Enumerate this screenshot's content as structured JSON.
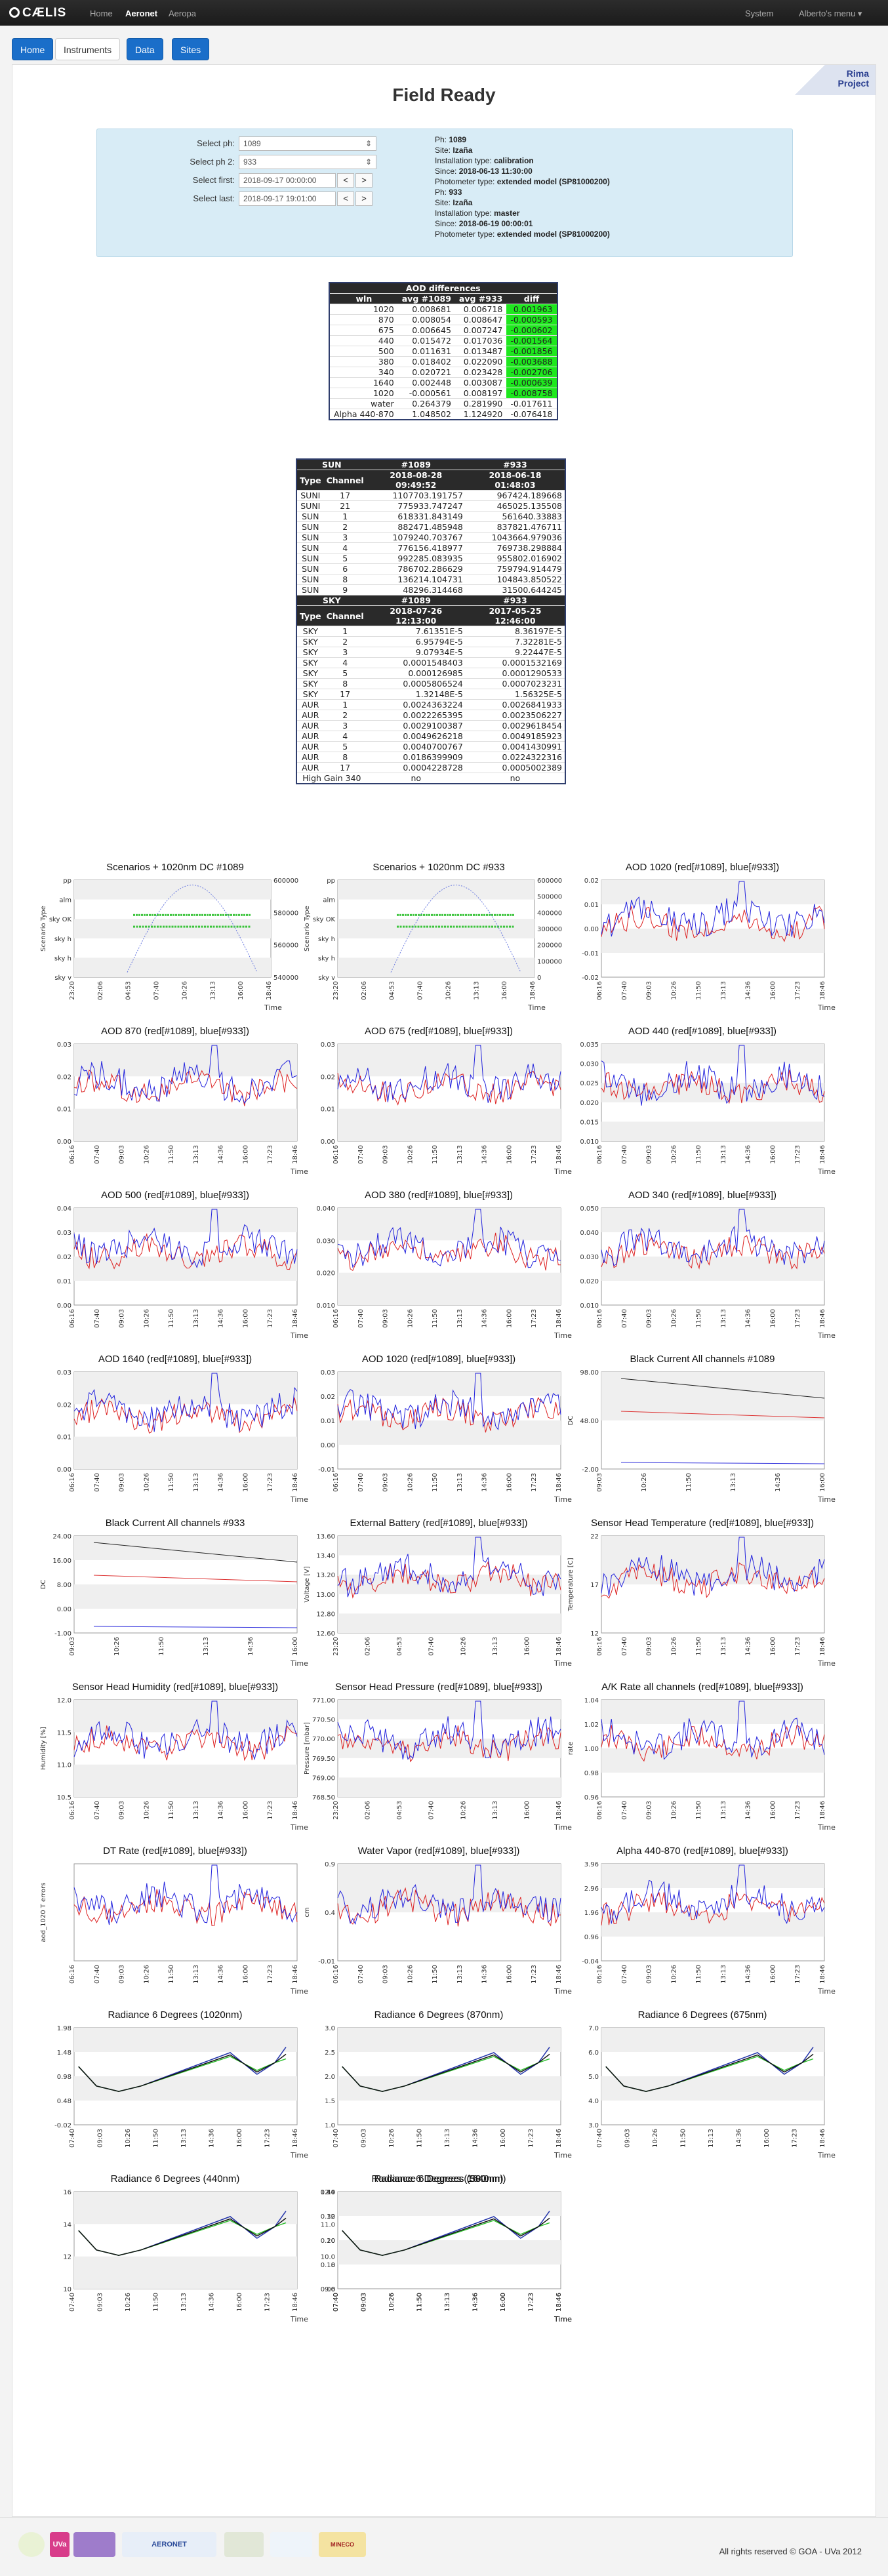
{
  "app": {
    "brand": "CÆLIS"
  },
  "nav": {
    "items": [
      "Home",
      "Aeronet",
      "Aeropa"
    ],
    "system": "System",
    "user": "Alberto's menu"
  },
  "subnav": {
    "home": "Home",
    "instruments": "Instruments",
    "data": "Data",
    "sites": "Sites"
  },
  "rima": "Rima\nProject",
  "page_title": "Field Ready",
  "form": {
    "select_ph_label": "Select ph:",
    "select_ph_value": "1089",
    "select_ph2_label": "Select ph 2:",
    "select_ph2_value": "933",
    "select_first_label": "Select first:",
    "select_first_value": "2018-09-17 00:00:00",
    "select_last_label": "Select last:",
    "select_last_value": "2018-09-17 19:01:00",
    "prev": "<",
    "next": ">"
  },
  "ph1": {
    "ph": "1089",
    "site": "Izaña",
    "installation": "calibration",
    "since": "2018-06-13 11:30:00",
    "model": "extended model (SP81000200)"
  },
  "ph2": {
    "ph": "933",
    "site": "Izaña",
    "installation": "master",
    "since": "2018-06-19 00:00:01",
    "model": "extended model (SP81000200)"
  },
  "labels": {
    "ph": "Ph:",
    "site": "Site:",
    "inst": "Installation type:",
    "since": "Since:",
    "model": "Photometer type:"
  },
  "aod_table": {
    "title": "AOD differences",
    "headers": [
      "wln",
      "avg #1089",
      "avg #933",
      "diff"
    ],
    "rows": [
      [
        "1020",
        "0.008681",
        "0.006718",
        "0.001963",
        true
      ],
      [
        "870",
        "0.008054",
        "0.008647",
        "-0.000593",
        true
      ],
      [
        "675",
        "0.006645",
        "0.007247",
        "-0.000602",
        true
      ],
      [
        "440",
        "0.015472",
        "0.017036",
        "-0.001564",
        true
      ],
      [
        "500",
        "0.011631",
        "0.013487",
        "-0.001856",
        true
      ],
      [
        "380",
        "0.018402",
        "0.022090",
        "-0.003688",
        true
      ],
      [
        "340",
        "0.020721",
        "0.023428",
        "-0.002706",
        true
      ],
      [
        "1640",
        "0.002448",
        "0.003087",
        "-0.000639",
        true
      ],
      [
        "1020",
        "-0.000561",
        "0.008197",
        "-0.008758",
        true
      ],
      [
        "water",
        "0.264379",
        "0.281990",
        "-0.017611",
        false
      ],
      [
        "Alpha 440-870",
        "1.048502",
        "1.124920",
        "-0.076418",
        false
      ]
    ]
  },
  "sun_table": {
    "head1": [
      "SUN",
      "#1089",
      "#933"
    ],
    "head2": [
      "Type",
      "Channel",
      "2018-08-28 09:49:52",
      "2018-06-18 01:48:03"
    ],
    "rows": [
      [
        "SUNI",
        "17",
        "1107703.191757",
        "967424.189668"
      ],
      [
        "SUNI",
        "21",
        "775933.747247",
        "465025.135508"
      ],
      [
        "SUN",
        "1",
        "618331.843149",
        "561640.33883"
      ],
      [
        "SUN",
        "2",
        "882471.485948",
        "837821.476711"
      ],
      [
        "SUN",
        "3",
        "1079240.703767",
        "1043664.979036"
      ],
      [
        "SUN",
        "4",
        "776156.418977",
        "769738.298884"
      ],
      [
        "SUN",
        "5",
        "992285.083935",
        "955802.016902"
      ],
      [
        "SUN",
        "6",
        "786702.286629",
        "759794.914479"
      ],
      [
        "SUN",
        "8",
        "136214.104731",
        "104843.850522"
      ],
      [
        "SUN",
        "9",
        "48296.314468",
        "31500.644245"
      ]
    ]
  },
  "sky_table": {
    "head1": [
      "SKY",
      "#1089",
      "#933"
    ],
    "head2": [
      "Type",
      "Channel",
      "2018-07-26 12:13:00",
      "2017-05-25 12:46:00"
    ],
    "rows": [
      [
        "SKY",
        "1",
        "7.61351E-5",
        "8.36197E-5"
      ],
      [
        "SKY",
        "2",
        "6.95794E-5",
        "7.32281E-5"
      ],
      [
        "SKY",
        "3",
        "9.07934E-5",
        "9.22447E-5"
      ],
      [
        "SKY",
        "4",
        "0.0001548403",
        "0.0001532169"
      ],
      [
        "SKY",
        "5",
        "0.000126985",
        "0.0001290533"
      ],
      [
        "SKY",
        "8",
        "0.0005806524",
        "0.0007023231"
      ],
      [
        "SKY",
        "17",
        "1.32148E-5",
        "1.56325E-5"
      ],
      [
        "AUR",
        "1",
        "0.0024363224",
        "0.0026841933"
      ],
      [
        "AUR",
        "2",
        "0.0022265395",
        "0.0023506227"
      ],
      [
        "AUR",
        "3",
        "0.0029100387",
        "0.0029618454"
      ],
      [
        "AUR",
        "4",
        "0.0049626218",
        "0.0049185923"
      ],
      [
        "AUR",
        "5",
        "0.0040700767",
        "0.0041430991"
      ],
      [
        "AUR",
        "8",
        "0.0186399909",
        "0.0224322316"
      ],
      [
        "AUR",
        "17",
        "0.0004228728",
        "0.0005002389"
      ]
    ],
    "gain": [
      "High Gain 340",
      "no",
      "no"
    ]
  },
  "charts": [
    {
      "title": "Scenarios + 1020nm DC #1089",
      "ylabel": "Scenario Type",
      "xlabel": "Time",
      "yticks": [
        "pp",
        "alm",
        "sky OK",
        "sky h",
        "sky h",
        "sky v"
      ],
      "y2ticks": [
        "600000",
        "580000",
        "560000",
        "540000"
      ],
      "xticks": [
        "23:20",
        "02:06",
        "04:53",
        "07:40",
        "10:26",
        "13:13",
        "16:00",
        "18:46"
      ],
      "kind": "scen"
    },
    {
      "title": "Scenarios + 1020nm DC #933",
      "ylabel": "Scenario Type",
      "xlabel": "Time",
      "yticks": [
        "pp",
        "alm",
        "sky OK",
        "sky h",
        "sky h",
        "sky v"
      ],
      "y2ticks": [
        "600000",
        "500000",
        "400000",
        "300000",
        "200000",
        "100000",
        "0"
      ],
      "xticks": [
        "23:20",
        "02:06",
        "04:53",
        "07:40",
        "10:26",
        "13:13",
        "16:00",
        "18:46"
      ],
      "kind": "scen"
    },
    {
      "title": "AOD 1020 (red[#1089], blue[#933])",
      "ylabel": "",
      "xlabel": "Time",
      "yticks": [
        "0.02",
        "0.01",
        "0.00",
        "-0.01",
        "-0.02"
      ],
      "xticks": [
        "06:16",
        "07:40",
        "09:03",
        "10:26",
        "11:50",
        "13:13",
        "14:36",
        "16:00",
        "17:23",
        "18:46"
      ],
      "kind": "aod"
    },
    {
      "title": "AOD 870 (red[#1089], blue[#933])",
      "ylabel": "",
      "xlabel": "Time",
      "yticks": [
        "0.03",
        "0.02",
        "0.01",
        "0.00"
      ],
      "xticks": [
        "06:16",
        "07:40",
        "09:03",
        "10:26",
        "11:50",
        "13:13",
        "14:36",
        "16:00",
        "17:23",
        "18:46"
      ],
      "kind": "aod"
    },
    {
      "title": "AOD 675 (red[#1089], blue[#933])",
      "ylabel": "",
      "xlabel": "Time",
      "yticks": [
        "0.03",
        "0.02",
        "0.01",
        "0.00"
      ],
      "xticks": [
        "06:16",
        "07:40",
        "09:03",
        "10:26",
        "11:50",
        "13:13",
        "14:36",
        "16:00",
        "17:23",
        "18:46"
      ],
      "kind": "aod"
    },
    {
      "title": "AOD 440 (red[#1089], blue[#933])",
      "ylabel": "",
      "xlabel": "Time",
      "yticks": [
        "0.035",
        "0.030",
        "0.025",
        "0.020",
        "0.015",
        "0.010"
      ],
      "xticks": [
        "06:16",
        "07:40",
        "09:03",
        "10:26",
        "11:50",
        "13:13",
        "14:36",
        "16:00",
        "17:23",
        "18:46"
      ],
      "kind": "aod"
    },
    {
      "title": "AOD 500 (red[#1089], blue[#933])",
      "ylabel": "",
      "xlabel": "Time",
      "yticks": [
        "0.04",
        "0.03",
        "0.02",
        "0.01",
        "0.00"
      ],
      "xticks": [
        "06:16",
        "07:40",
        "09:03",
        "10:26",
        "11:50",
        "13:13",
        "14:36",
        "16:00",
        "17:23",
        "18:46"
      ],
      "kind": "aod"
    },
    {
      "title": "AOD 380 (red[#1089], blue[#933])",
      "ylabel": "",
      "xlabel": "Time",
      "yticks": [
        "0.040",
        "0.030",
        "0.020",
        "0.010"
      ],
      "xticks": [
        "06:16",
        "07:40",
        "09:03",
        "10:26",
        "11:50",
        "13:13",
        "14:36",
        "16:00",
        "17:23",
        "18:46"
      ],
      "kind": "aod"
    },
    {
      "title": "AOD 340 (red[#1089], blue[#933])",
      "ylabel": "",
      "xlabel": "Time",
      "yticks": [
        "0.050",
        "0.040",
        "0.030",
        "0.020",
        "0.010"
      ],
      "xticks": [
        "06:16",
        "07:40",
        "09:03",
        "10:26",
        "11:50",
        "13:13",
        "14:36",
        "16:00",
        "17:23",
        "18:46"
      ],
      "kind": "aod"
    },
    {
      "title": "AOD 1640 (red[#1089], blue[#933])",
      "ylabel": "",
      "xlabel": "Time",
      "yticks": [
        "0.03",
        "0.02",
        "0.01",
        "0.00"
      ],
      "xticks": [
        "06:16",
        "07:40",
        "09:03",
        "10:26",
        "11:50",
        "13:13",
        "14:36",
        "16:00",
        "17:23",
        "18:46"
      ],
      "kind": "aod"
    },
    {
      "title": "AOD 1020 (red[#1089], blue[#933])",
      "ylabel": "",
      "xlabel": "Time",
      "yticks": [
        "0.03",
        "0.02",
        "0.01",
        "0.00",
        "-0.01"
      ],
      "xticks": [
        "06:16",
        "07:40",
        "09:03",
        "10:26",
        "11:50",
        "13:13",
        "14:36",
        "16:00",
        "17:23",
        "18:46"
      ],
      "kind": "aod2"
    },
    {
      "title": "Black Current All channels #1089",
      "ylabel": "DC",
      "xlabel": "Time",
      "yticks": [
        "98.00",
        "48.00",
        "-2.00"
      ],
      "xticks": [
        "09:03",
        "10:26",
        "11:50",
        "13:13",
        "14:36",
        "16:00"
      ],
      "kind": "bc"
    },
    {
      "title": "Black Current All channels #933",
      "ylabel": "DC",
      "xlabel": "Time",
      "yticks": [
        "24.00",
        "16.00",
        "8.00",
        "0.00",
        "-1.00"
      ],
      "xticks": [
        "09:03",
        "10:26",
        "11:50",
        "13:13",
        "14:36",
        "16:00"
      ],
      "kind": "bc2"
    },
    {
      "title": "External Battery (red[#1089], blue[#933])",
      "ylabel": "Voltage [V]",
      "xlabel": "Time",
      "yticks": [
        "13.60",
        "13.40",
        "13.20",
        "13.00",
        "12.80",
        "12.60"
      ],
      "xticks": [
        "23:20",
        "02:06",
        "04:53",
        "07:40",
        "10:26",
        "13:13",
        "16:00",
        "18:46"
      ],
      "kind": "batt"
    },
    {
      "title": "Sensor Head Temperature (red[#1089], blue[#933])",
      "ylabel": "Temperature [C]",
      "xlabel": "Time",
      "yticks": [
        "22",
        "17",
        "12"
      ],
      "xticks": [
        "06:16",
        "07:40",
        "09:03",
        "10:26",
        "11:50",
        "13:13",
        "14:36",
        "16:00",
        "17:23",
        "18:46"
      ],
      "kind": "temp"
    },
    {
      "title": "Sensor Head Humidity (red[#1089], blue[#933])",
      "ylabel": "Humidity [%]",
      "xlabel": "Time",
      "yticks": [
        "12.0",
        "11.5",
        "11.0",
        "10.5"
      ],
      "xticks": [
        "06:16",
        "07:40",
        "09:03",
        "10:26",
        "11:50",
        "13:13",
        "14:36",
        "16:00",
        "17:23",
        "18:46"
      ],
      "kind": "hum"
    },
    {
      "title": "Sensor Head Pressure (red[#1089], blue[#933])",
      "ylabel": "Pressure [mbar]",
      "xlabel": "Time",
      "yticks": [
        "771.00",
        "770.50",
        "770.00",
        "769.50",
        "769.00",
        "768.50"
      ],
      "xticks": [
        "23:20",
        "02:06",
        "04:53",
        "07:40",
        "10:26",
        "13:13",
        "16:00",
        "18:46"
      ],
      "kind": "press"
    },
    {
      "title": "A/K Rate all channels (red[#1089], blue[#933])",
      "ylabel": "rate",
      "xlabel": "Time",
      "yticks": [
        "1.04",
        "1.02",
        "1.00",
        "0.98",
        "0.96"
      ],
      "xticks": [
        "06:16",
        "07:40",
        "09:03",
        "10:26",
        "11:50",
        "13:13",
        "14:36",
        "16:00",
        "17:23",
        "18:46"
      ],
      "kind": "ak"
    },
    {
      "title": "DT Rate (red[#1089], blue[#933])",
      "ylabel": "aod_1020 T errors",
      "xlabel": "Time",
      "yticks": [],
      "xticks": [
        "06:16",
        "07:40",
        "09:03",
        "10:26",
        "11:50",
        "13:13",
        "14:36",
        "16:00",
        "17:23",
        "18:46"
      ],
      "kind": "dt"
    },
    {
      "title": "Water Vapor (red[#1089], blue[#933])",
      "ylabel": "cm",
      "xlabel": "Time",
      "yticks": [
        "0.9",
        "0.4",
        "-0.01"
      ],
      "xticks": [
        "06:16",
        "07:40",
        "09:03",
        "10:26",
        "11:50",
        "13:13",
        "14:36",
        "16:00",
        "17:23",
        "18:46"
      ],
      "kind": "wv"
    },
    {
      "title": "Alpha 440-870 (red[#1089], blue[#933])",
      "ylabel": "",
      "xlabel": "Time",
      "yticks": [
        "3.96",
        "2.96",
        "1.96",
        "0.96",
        "-0.04"
      ],
      "xticks": [
        "06:16",
        "07:40",
        "09:03",
        "10:26",
        "11:50",
        "13:13",
        "14:36",
        "16:00",
        "17:23",
        "18:46"
      ],
      "kind": "alpha"
    },
    {
      "title": "Radiance 6 Degrees (1020nm)",
      "ylabel": "",
      "xlabel": "Time",
      "yticks": [
        "1.98",
        "1.48",
        "0.98",
        "0.48",
        "-0.02"
      ],
      "xticks": [
        "07:40",
        "09:03",
        "10:26",
        "11:50",
        "13:13",
        "14:36",
        "16:00",
        "17:23",
        "18:46"
      ],
      "kind": "rad"
    },
    {
      "title": "Radiance 6 Degrees (870nm)",
      "ylabel": "",
      "xlabel": "Time",
      "yticks": [
        "3.0",
        "2.5",
        "2.0",
        "1.5",
        "1.0"
      ],
      "xticks": [
        "07:40",
        "09:03",
        "10:26",
        "11:50",
        "13:13",
        "14:36",
        "16:00",
        "17:23",
        "18:46"
      ],
      "kind": "rad"
    },
    {
      "title": "Radiance 6 Degrees (675nm)",
      "ylabel": "",
      "xlabel": "Time",
      "yticks": [
        "7.0",
        "6.0",
        "5.0",
        "4.0",
        "3.0"
      ],
      "xticks": [
        "07:40",
        "09:03",
        "10:26",
        "11:50",
        "13:13",
        "14:36",
        "16:00",
        "17:23",
        "18:46"
      ],
      "kind": "rad"
    },
    {
      "title": "Radiance 6 Degrees (440nm)",
      "ylabel": "",
      "xlabel": "Time",
      "yticks": [
        "16",
        "14",
        "12",
        "10"
      ],
      "xticks": [
        "07:40",
        "09:03",
        "10:26",
        "11:50",
        "13:13",
        "14:36",
        "16:00",
        "17:23",
        "18:46"
      ],
      "kind": "rad"
    },
    {
      "title": "Radiance 6 Degrees (500nm)",
      "ylabel": "",
      "xlabel": "Time",
      "yticks": [
        "14",
        "12",
        "10",
        "8",
        "6"
      ],
      "xticks": [
        "07:40",
        "09:03",
        "10:26",
        "11:50",
        "13:13",
        "14:36",
        "16:00",
        "17:23",
        "18:46"
      ],
      "kind": "rad"
    },
    {
      "title": "Radiance 6 Degrees (380nm)",
      "ylabel": "",
      "xlabel": "Time",
      "yticks": [
        "12.0",
        "11.0",
        "10.0",
        "9.0"
      ],
      "xticks": [
        "07:40",
        "09:03",
        "10:26",
        "11:50",
        "13:13",
        "14:36",
        "16:00",
        "17:23",
        "18:46"
      ],
      "kind": "rad2"
    },
    {
      "title": "Radiance 6 Degrees (1640nm)",
      "ylabel": "",
      "xlabel": "Time",
      "yticks": [
        "0.40",
        "0.30",
        "0.20",
        "0.10",
        "0.00"
      ],
      "xticks": [
        "07:40",
        "09:03",
        "10:26",
        "11:50",
        "13:13",
        "14:36",
        "16:00",
        "17:23",
        "18:46"
      ],
      "kind": "rad3"
    }
  ],
  "footer": {
    "logos": [
      "UVa",
      "AERONET",
      "MINECO"
    ],
    "copyright": "All rights reserved © GOA - UVa 2012"
  }
}
